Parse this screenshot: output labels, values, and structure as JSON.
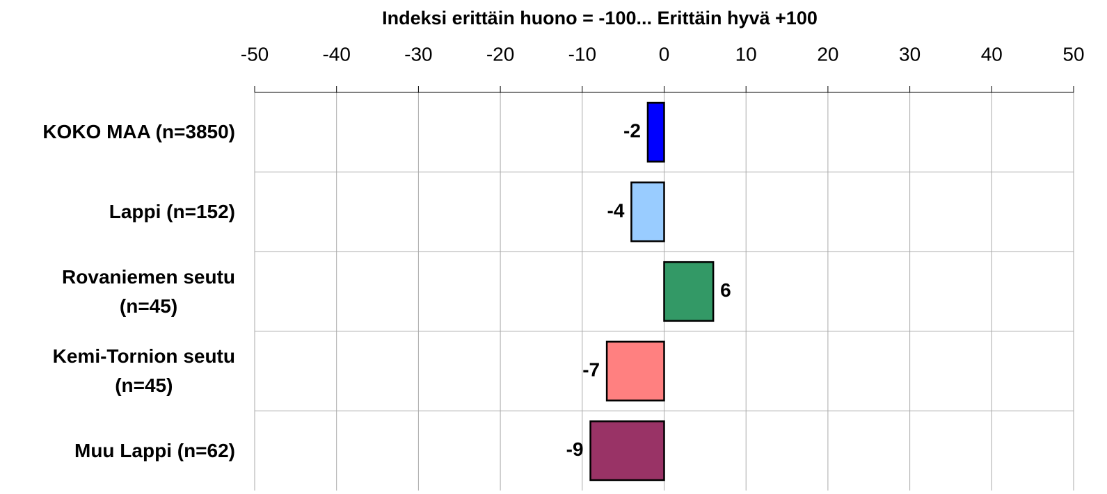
{
  "chart_data": {
    "type": "bar",
    "orientation": "horizontal",
    "title": "Indeksi erittäin huono = -100... Erittäin hyvä +100",
    "categories": [
      "KOKO MAA (n=3850)",
      "Lappi (n=152)",
      "Rovaniemen seutu\n(n=45)",
      "Kemi-Tornion seutu\n(n=45)",
      "Muu Lappi (n=62)"
    ],
    "values": [
      -2,
      -4,
      6,
      -7,
      -9
    ],
    "colors": [
      "#0000ff",
      "#99ccff",
      "#339966",
      "#ff8080",
      "#993366"
    ],
    "xlim": [
      -50,
      50
    ],
    "xticks": [
      -50,
      -40,
      -30,
      -20,
      -10,
      0,
      10,
      20,
      30,
      40,
      50
    ],
    "grid": true
  }
}
